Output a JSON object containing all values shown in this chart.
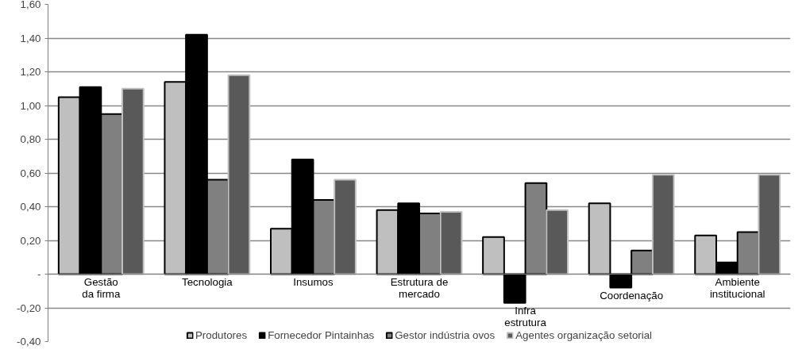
{
  "chart_data": {
    "type": "bar",
    "categories": [
      "Gestão\nda firma",
      "Tecnologia",
      "Insumos",
      "Estrutura de\nmercado",
      "Infra\nestrutura",
      "Coordenação",
      "Ambiente\ninstitucional"
    ],
    "series": [
      {
        "name": "Produtores",
        "color": "#bfbfbf",
        "values": [
          1.05,
          1.14,
          0.27,
          0.38,
          0.22,
          0.42,
          0.23
        ]
      },
      {
        "name": "Fornecedor Pintainhas",
        "color": "#000000",
        "values": [
          1.11,
          1.42,
          0.68,
          0.42,
          -0.17,
          -0.08,
          0.07
        ]
      },
      {
        "name": "Gestor indústria ovos",
        "color": "#808080",
        "values": [
          0.95,
          0.56,
          0.44,
          0.36,
          0.54,
          0.14,
          0.25
        ]
      },
      {
        "name": "Agentes organização setorial",
        "color": "#595959",
        "values": [
          1.1,
          1.18,
          0.56,
          0.37,
          0.38,
          0.59,
          0.59
        ]
      }
    ],
    "ylim": [
      -0.4,
      1.6
    ],
    "yticks": [
      {
        "value": -0.4,
        "label": "-0,40"
      },
      {
        "value": -0.2,
        "label": "-0,20"
      },
      {
        "value": 0,
        "label": "-"
      },
      {
        "value": 0.2,
        "label": "0,20"
      },
      {
        "value": 0.4,
        "label": "0,40"
      },
      {
        "value": 0.6,
        "label": "0,60"
      },
      {
        "value": 0.8,
        "label": "0,80"
      },
      {
        "value": 1.0,
        "label": "1,00"
      },
      {
        "value": 1.2,
        "label": "1,20"
      },
      {
        "value": 1.4,
        "label": "1,40"
      },
      {
        "value": 1.6,
        "label": "1,60"
      }
    ],
    "grid": "y",
    "legend": "bottom"
  }
}
